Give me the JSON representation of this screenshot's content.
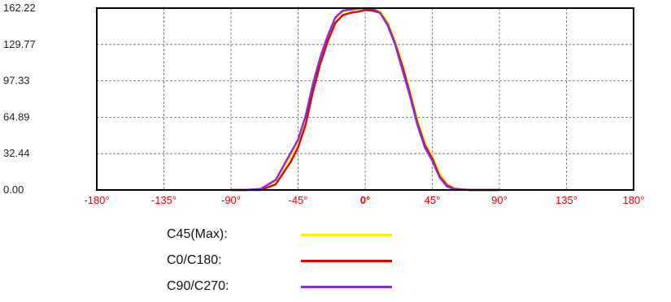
{
  "chart_data": {
    "type": "line",
    "title": "",
    "xlabel": "",
    "ylabel": "",
    "xlim": [
      -180,
      180
    ],
    "ylim": [
      0,
      162.22
    ],
    "yticks": [
      "162.22",
      "129.77",
      "97.33",
      "64.89",
      "32.44",
      "0.00"
    ],
    "xticks": [
      "-180°",
      "-135°",
      "-90°",
      "-45°",
      "0°",
      "45°",
      "90°",
      "135°",
      "180°"
    ],
    "grid": true,
    "series": [
      {
        "name": "C45(Max):",
        "color": "#ffee00",
        "x": [
          -90,
          -80,
          -70,
          -60,
          -50,
          -45,
          -40,
          -35,
          -30,
          -25,
          -20,
          -15,
          -10,
          -5,
          0,
          5,
          10,
          15,
          20,
          25,
          30,
          35,
          40,
          45,
          50,
          55,
          60,
          70,
          80,
          90
        ],
        "y": [
          0,
          0,
          1,
          8,
          30,
          42,
          62,
          92,
          117,
          137,
          153,
          159,
          160,
          161.5,
          162.2,
          162,
          160,
          150,
          133,
          113,
          88,
          63,
          42,
          30,
          15,
          5,
          1,
          0,
          0,
          0
        ]
      },
      {
        "name": "C0/C180:",
        "color": "#e00000",
        "x": [
          -90,
          -80,
          -70,
          -60,
          -50,
          -45,
          -40,
          -35,
          -30,
          -25,
          -20,
          -15,
          -10,
          -5,
          0,
          5,
          10,
          15,
          20,
          25,
          30,
          35,
          40,
          45,
          50,
          55,
          60,
          70,
          80,
          90
        ],
        "y": [
          0,
          0,
          0,
          5,
          25,
          38,
          58,
          88,
          113,
          133,
          149,
          156,
          158,
          159,
          160.5,
          160,
          158,
          148,
          131,
          110,
          86,
          60,
          40,
          28,
          12,
          4,
          1,
          0,
          0,
          0
        ]
      },
      {
        "name": "C90/C270:",
        "color": "#8a2be2",
        "x": [
          -90,
          -80,
          -70,
          -60,
          -50,
          -45,
          -40,
          -35,
          -30,
          -25,
          -20,
          -15,
          -10,
          -5,
          0,
          5,
          10,
          15,
          20,
          25,
          30,
          35,
          40,
          45,
          50,
          55,
          60,
          70,
          80,
          90
        ],
        "y": [
          0,
          0,
          1,
          9,
          33,
          45,
          66,
          95,
          119,
          138,
          154,
          160,
          161,
          161.8,
          162.2,
          161.5,
          158,
          147,
          130,
          107,
          84,
          58,
          38,
          26,
          11,
          3,
          0.5,
          0,
          0,
          0
        ]
      }
    ]
  },
  "legend": {
    "items": [
      {
        "label": "C45(Max):",
        "color": "#ffee00"
      },
      {
        "label": "C0/C180:",
        "color": "#e00000"
      },
      {
        "label": "C90/C270:",
        "color": "#8a2be2"
      }
    ]
  }
}
